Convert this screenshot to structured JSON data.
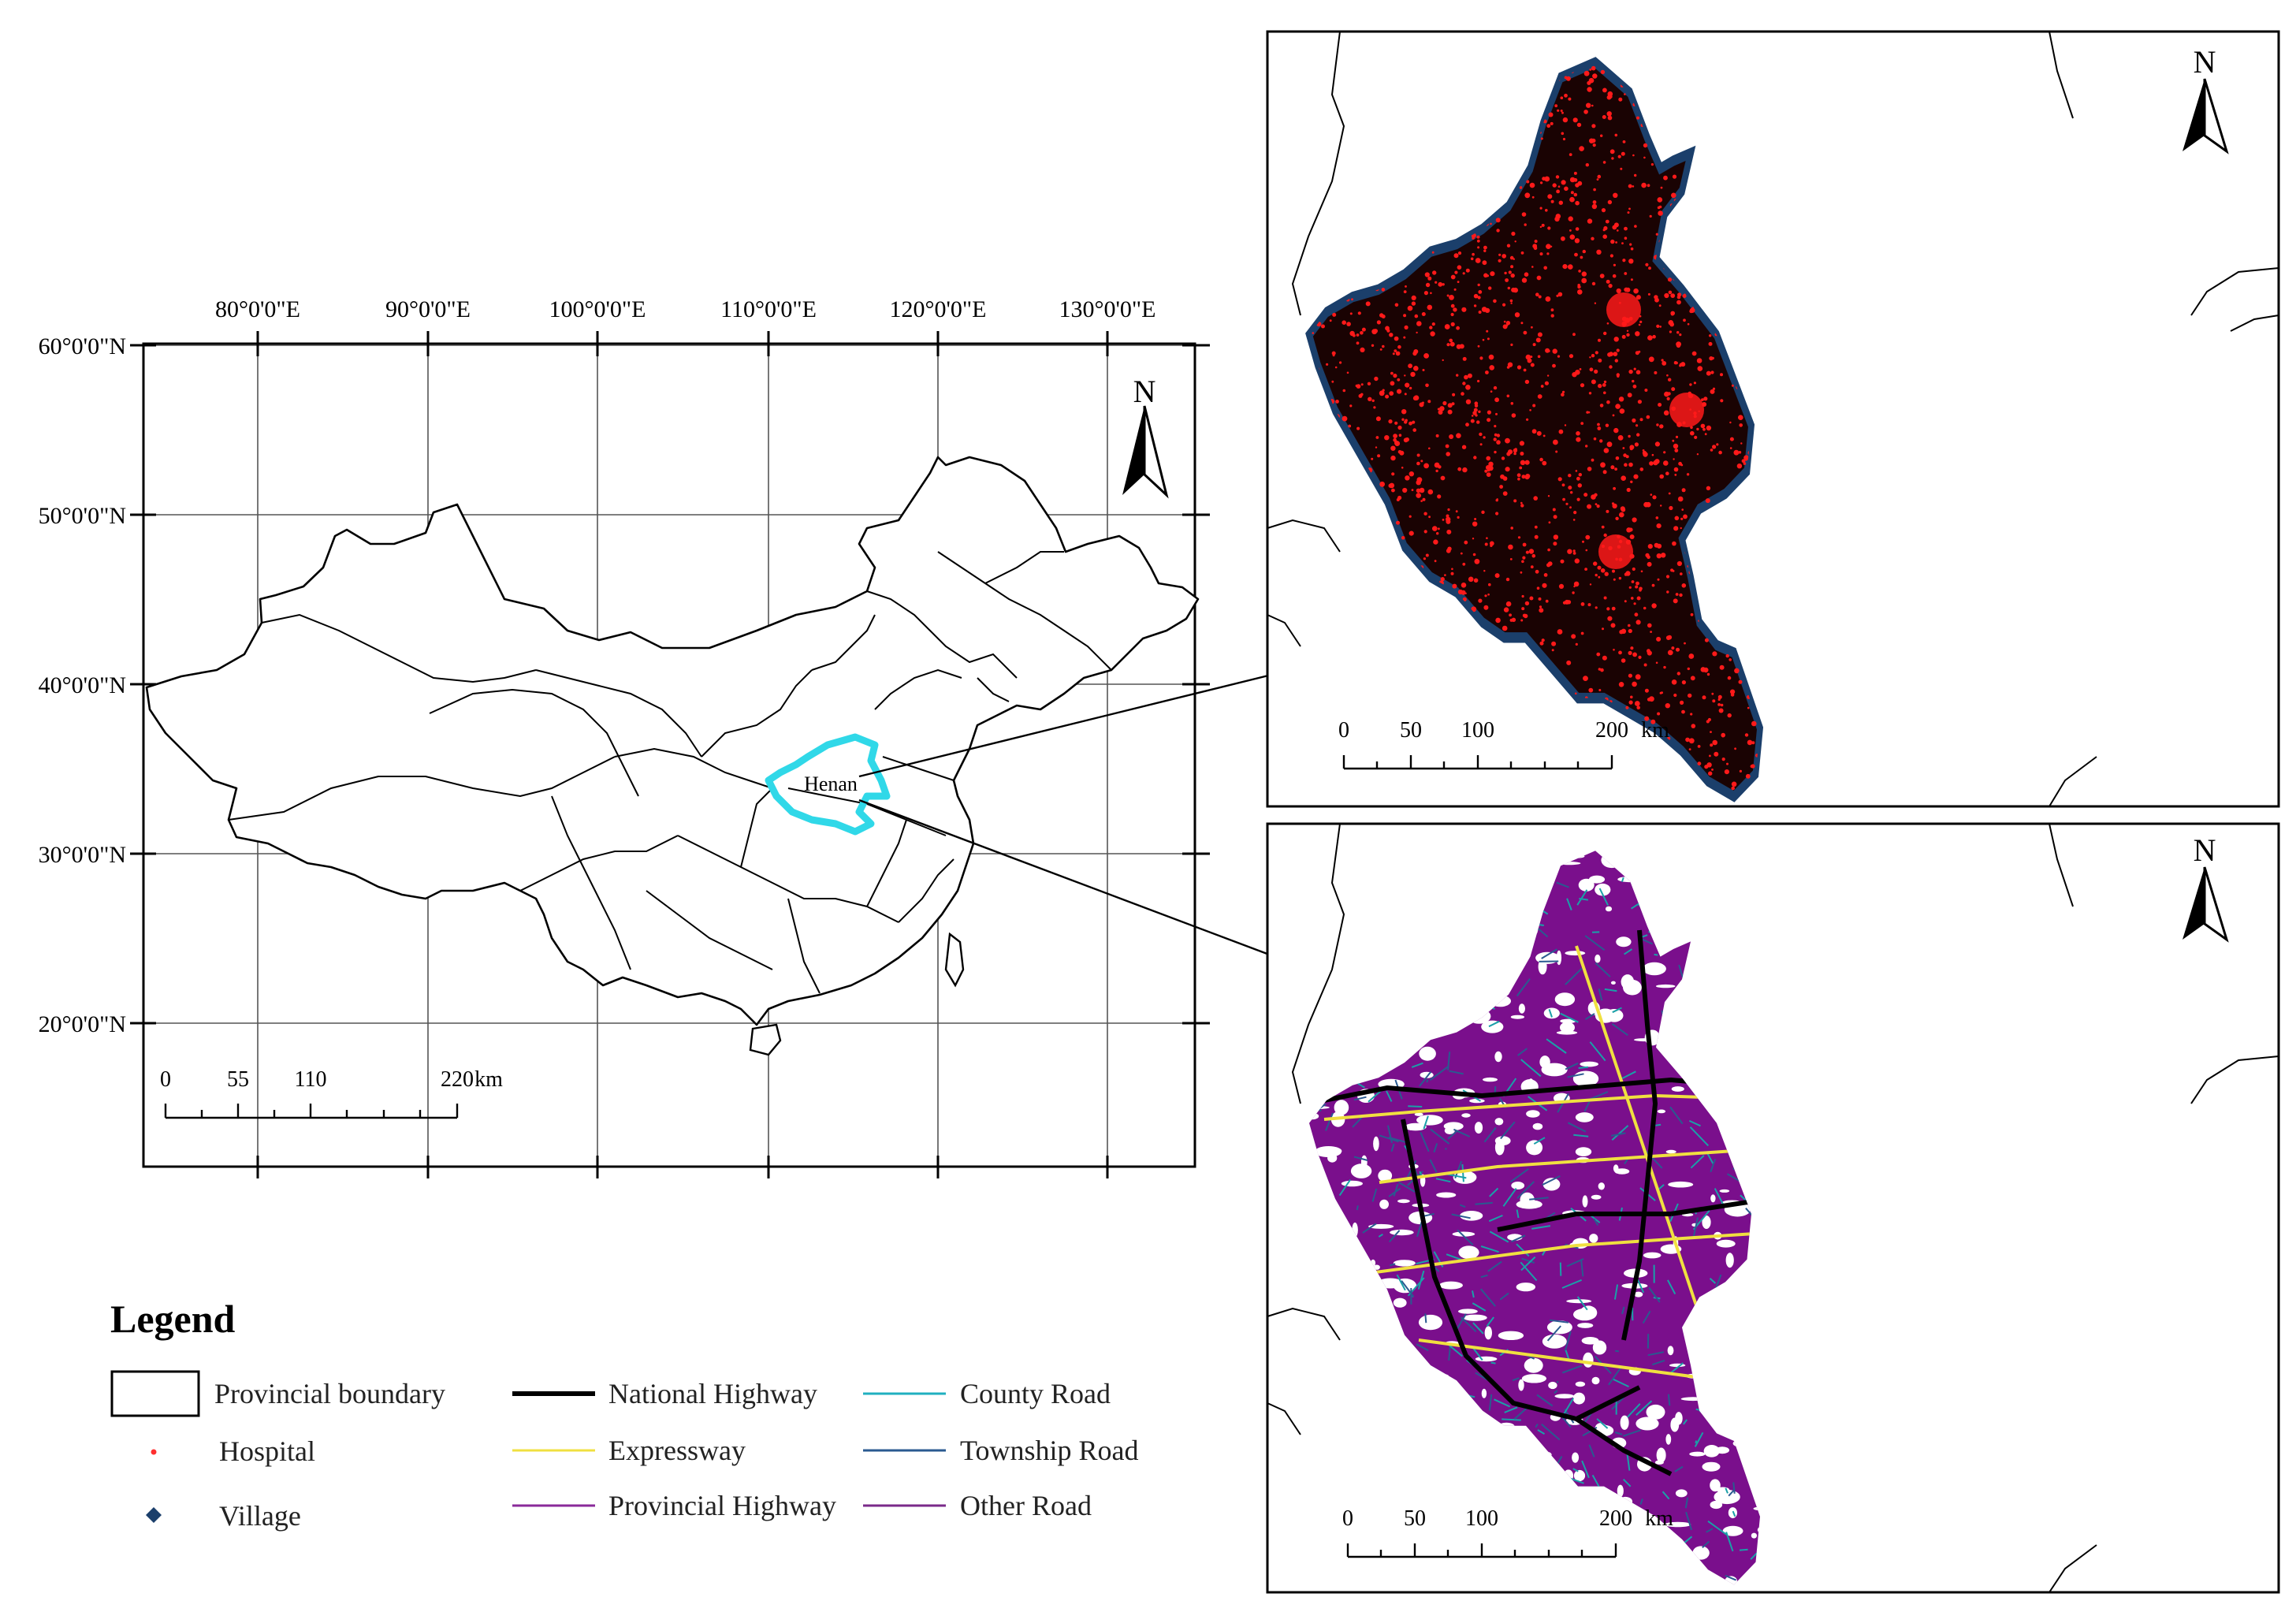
{
  "china_map": {
    "lon_labels": [
      "80°0'0\"E",
      "90°0'0\"E",
      "100°0'0\"E",
      "110°0'0\"E",
      "120°0'0\"E",
      "130°0'0\"E"
    ],
    "lat_labels": [
      "60°0'0\"N",
      "50°0'0\"N",
      "40°0'0\"N",
      "30°0'0\"N",
      "20°0'0\"N"
    ],
    "province_label": "Henan",
    "highlight_color": "#30d8e8",
    "north": "N",
    "scale": {
      "ticks": [
        "0",
        "55",
        "110",
        "220"
      ],
      "unit": "km"
    }
  },
  "hospital_map": {
    "north": "N",
    "scale": {
      "ticks": [
        "0",
        "50",
        "100",
        "200"
      ],
      "unit": "km"
    },
    "colors": {
      "hospital": "#ff1a1a",
      "village": "#1b3f6b",
      "fill": "#1a0303"
    }
  },
  "road_map": {
    "north": "N",
    "scale": {
      "ticks": [
        "0",
        "50",
        "100",
        "200"
      ],
      "unit": "km"
    },
    "colors": {
      "base": "#7a0f8c",
      "county": "#1aa0a8",
      "township": "#2a5a90",
      "expressway": "#f0e040",
      "national": "#000000"
    }
  },
  "legend": {
    "title": "Legend",
    "items": [
      {
        "label": "Provincial boundary",
        "symbol": "box"
      },
      {
        "label": "Hospital",
        "symbol": "dot",
        "color": "#ff3030"
      },
      {
        "label": "Village",
        "symbol": "diamond",
        "color": "#1b3f6b"
      },
      {
        "label": "National Highway",
        "symbol": "line",
        "color": "#000000"
      },
      {
        "label": "Expressway",
        "symbol": "line",
        "color": "#f0e040"
      },
      {
        "label": "Provincial Highway",
        "symbol": "line",
        "color": "#8a2a9a"
      },
      {
        "label": "County Road",
        "symbol": "line",
        "color": "#20b0c0"
      },
      {
        "label": "Township Road",
        "symbol": "line",
        "color": "#2a5a90"
      },
      {
        "label": "Other Road",
        "symbol": "line",
        "color": "#7a2a8a"
      }
    ]
  }
}
